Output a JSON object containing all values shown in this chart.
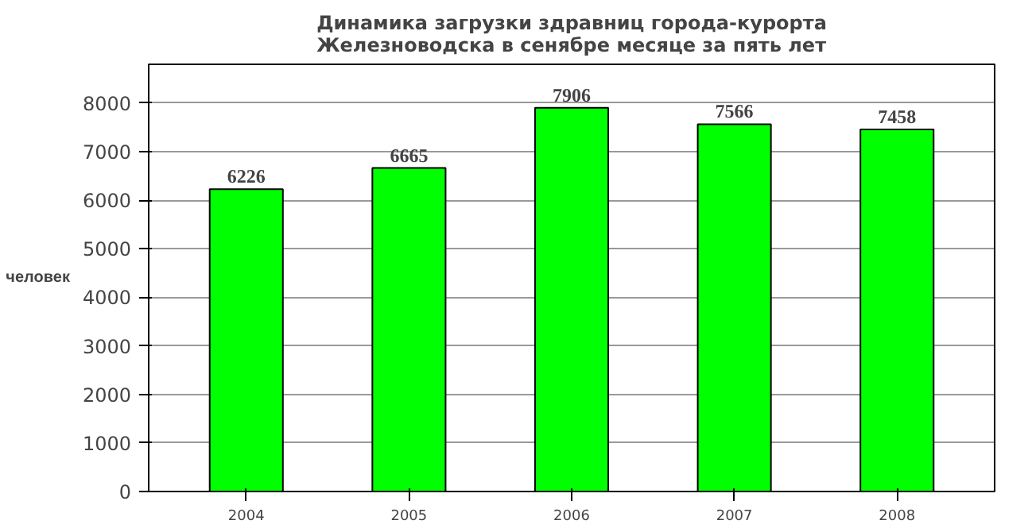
{
  "chart_data": {
    "type": "bar",
    "title": "Динамика загрузки здравниц города-курорта Железноводска в сенябре месяце за пять лет",
    "ylabel": "человек",
    "categories": [
      "2004",
      "2005",
      "2006",
      "2007",
      "2008"
    ],
    "values": [
      6226,
      6665,
      7906,
      7566,
      7458
    ],
    "color": "#00ff00",
    "ylim": [
      0,
      8800
    ],
    "yticks": [
      0,
      1000,
      2000,
      3000,
      4000,
      5000,
      6000,
      7000,
      8000
    ],
    "grid": "y",
    "data_labels": true
  }
}
